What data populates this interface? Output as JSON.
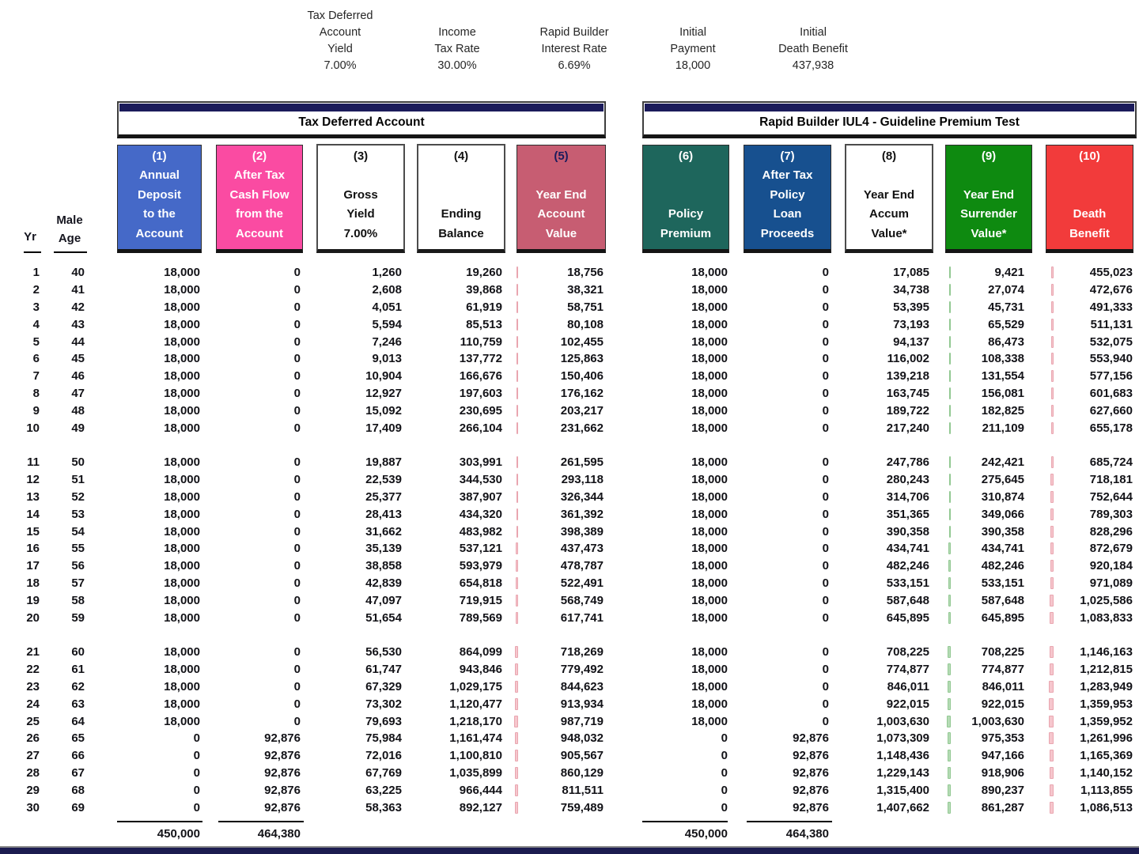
{
  "params": [
    {
      "id": "tax-deferred-account-yield",
      "lines": [
        "Tax Deferred",
        "Account",
        "Yield",
        "7.00%"
      ]
    },
    {
      "id": "income-tax-rate",
      "lines": [
        "Income",
        "Tax Rate",
        "30.00%"
      ]
    },
    {
      "id": "rapid-builder-interest-rate",
      "lines": [
        "Rapid Builder",
        "Interest Rate",
        "6.69%"
      ]
    },
    {
      "id": "initial-payment",
      "lines": [
        "Initial",
        "Payment",
        "18,000"
      ]
    },
    {
      "id": "initial-death-benefit",
      "lines": [
        "Initial",
        "Death Benefit",
        "437,938"
      ]
    }
  ],
  "sections": {
    "left_title": "Tax Deferred Account",
    "right_title": "Rapid Builder IUL4 - Guideline Premium Test"
  },
  "row_header": {
    "yr": "Yr",
    "age_line1": "Male",
    "age_line2": "Age"
  },
  "columns": [
    {
      "id": "annual-deposit",
      "num": "(1)",
      "lines": [
        "Annual",
        "Deposit",
        "to the",
        "Account"
      ],
      "bg": "#4569c8",
      "fg": "#ffffff",
      "num_color": "#ffffff",
      "white": false
    },
    {
      "id": "after-tax-cash-flow",
      "num": "(2)",
      "lines": [
        "After Tax",
        "Cash Flow",
        "from the",
        "Account"
      ],
      "bg": "#fa4ba2",
      "fg": "#ffffff",
      "num_color": "#ffffff",
      "white": false
    },
    {
      "id": "gross-yield",
      "num": "(3)",
      "lines": [
        "Gross",
        "Yield",
        "7.00%"
      ],
      "bg": "#ffffff",
      "fg": "#111111",
      "num_color": "#111111",
      "white": true
    },
    {
      "id": "ending-balance",
      "num": "(4)",
      "lines": [
        "Ending",
        "Balance"
      ],
      "bg": "#ffffff",
      "fg": "#111111",
      "num_color": "#111111",
      "white": true
    },
    {
      "id": "year-end-account-value",
      "num": "(5)",
      "lines": [
        "Year End",
        "Account",
        "Value"
      ],
      "bg": "#c75d72",
      "fg": "#ffffff",
      "num_color": "#1b1b5c",
      "white": false
    },
    {
      "id": "policy-premium",
      "num": "(6)",
      "lines": [
        "Policy",
        "Premium"
      ],
      "bg": "#1e665c",
      "fg": "#ffffff",
      "num_color": "#ffffff",
      "white": false
    },
    {
      "id": "after-tax-policy-loan-proceeds",
      "num": "(7)",
      "lines": [
        "After Tax",
        "Policy",
        "Loan",
        "Proceeds"
      ],
      "bg": "#17508f",
      "fg": "#ffffff",
      "num_color": "#ffffff",
      "white": false
    },
    {
      "id": "year-end-accum-value",
      "num": "(8)",
      "lines": [
        "Year End",
        "Accum",
        "Value*"
      ],
      "bg": "#ffffff",
      "fg": "#111111",
      "num_color": "#111111",
      "white": true
    },
    {
      "id": "year-end-surrender-value",
      "num": "(9)",
      "lines": [
        "Year End",
        "Surrender",
        "Value*"
      ],
      "bg": "#0e8a10",
      "fg": "#ffffff",
      "num_color": "#ffffff",
      "white": false
    },
    {
      "id": "death-benefit",
      "num": "(10)",
      "lines": [
        "Death",
        "Benefit"
      ],
      "bg": "#f23b3b",
      "fg": "#ffffff",
      "num_color": "#ffffff",
      "white": false
    }
  ],
  "ticks": {
    "account_value": {
      "color": "#f6c6cd",
      "border": "#e9a6b0"
    },
    "surrender_value": {
      "color": "#b7dcb7",
      "border": "#92c892"
    },
    "death_benefit": {
      "color": "#f6c6cd",
      "border": "#e9a6b0"
    }
  },
  "rows": [
    [
      "1",
      "40",
      "18,000",
      "0",
      "1,260",
      "19,260",
      "18,756",
      "18,000",
      "0",
      "17,085",
      "9,421",
      "455,023"
    ],
    [
      "2",
      "41",
      "18,000",
      "0",
      "2,608",
      "39,868",
      "38,321",
      "18,000",
      "0",
      "34,738",
      "27,074",
      "472,676"
    ],
    [
      "3",
      "42",
      "18,000",
      "0",
      "4,051",
      "61,919",
      "58,751",
      "18,000",
      "0",
      "53,395",
      "45,731",
      "491,333"
    ],
    [
      "4",
      "43",
      "18,000",
      "0",
      "5,594",
      "85,513",
      "80,108",
      "18,000",
      "0",
      "73,193",
      "65,529",
      "511,131"
    ],
    [
      "5",
      "44",
      "18,000",
      "0",
      "7,246",
      "110,759",
      "102,455",
      "18,000",
      "0",
      "94,137",
      "86,473",
      "532,075"
    ],
    [
      "6",
      "45",
      "18,000",
      "0",
      "9,013",
      "137,772",
      "125,863",
      "18,000",
      "0",
      "116,002",
      "108,338",
      "553,940"
    ],
    [
      "7",
      "46",
      "18,000",
      "0",
      "10,904",
      "166,676",
      "150,406",
      "18,000",
      "0",
      "139,218",
      "131,554",
      "577,156"
    ],
    [
      "8",
      "47",
      "18,000",
      "0",
      "12,927",
      "197,603",
      "176,162",
      "18,000",
      "0",
      "163,745",
      "156,081",
      "601,683"
    ],
    [
      "9",
      "48",
      "18,000",
      "0",
      "15,092",
      "230,695",
      "203,217",
      "18,000",
      "0",
      "189,722",
      "182,825",
      "627,660"
    ],
    [
      "10",
      "49",
      "18,000",
      "0",
      "17,409",
      "266,104",
      "231,662",
      "18,000",
      "0",
      "217,240",
      "211,109",
      "655,178"
    ],
    [
      "11",
      "50",
      "18,000",
      "0",
      "19,887",
      "303,991",
      "261,595",
      "18,000",
      "0",
      "247,786",
      "242,421",
      "685,724"
    ],
    [
      "12",
      "51",
      "18,000",
      "0",
      "22,539",
      "344,530",
      "293,118",
      "18,000",
      "0",
      "280,243",
      "275,645",
      "718,181"
    ],
    [
      "13",
      "52",
      "18,000",
      "0",
      "25,377",
      "387,907",
      "326,344",
      "18,000",
      "0",
      "314,706",
      "310,874",
      "752,644"
    ],
    [
      "14",
      "53",
      "18,000",
      "0",
      "28,413",
      "434,320",
      "361,392",
      "18,000",
      "0",
      "351,365",
      "349,066",
      "789,303"
    ],
    [
      "15",
      "54",
      "18,000",
      "0",
      "31,662",
      "483,982",
      "398,389",
      "18,000",
      "0",
      "390,358",
      "390,358",
      "828,296"
    ],
    [
      "16",
      "55",
      "18,000",
      "0",
      "35,139",
      "537,121",
      "437,473",
      "18,000",
      "0",
      "434,741",
      "434,741",
      "872,679"
    ],
    [
      "17",
      "56",
      "18,000",
      "0",
      "38,858",
      "593,979",
      "478,787",
      "18,000",
      "0",
      "482,246",
      "482,246",
      "920,184"
    ],
    [
      "18",
      "57",
      "18,000",
      "0",
      "42,839",
      "654,818",
      "522,491",
      "18,000",
      "0",
      "533,151",
      "533,151",
      "971,089"
    ],
    [
      "19",
      "58",
      "18,000",
      "0",
      "47,097",
      "719,915",
      "568,749",
      "18,000",
      "0",
      "587,648",
      "587,648",
      "1,025,586"
    ],
    [
      "20",
      "59",
      "18,000",
      "0",
      "51,654",
      "789,569",
      "617,741",
      "18,000",
      "0",
      "645,895",
      "645,895",
      "1,083,833"
    ],
    [
      "21",
      "60",
      "18,000",
      "0",
      "56,530",
      "864,099",
      "718,269",
      "18,000",
      "0",
      "708,225",
      "708,225",
      "1,146,163"
    ],
    [
      "22",
      "61",
      "18,000",
      "0",
      "61,747",
      "943,846",
      "779,492",
      "18,000",
      "0",
      "774,877",
      "774,877",
      "1,212,815"
    ],
    [
      "23",
      "62",
      "18,000",
      "0",
      "67,329",
      "1,029,175",
      "844,623",
      "18,000",
      "0",
      "846,011",
      "846,011",
      "1,283,949"
    ],
    [
      "24",
      "63",
      "18,000",
      "0",
      "73,302",
      "1,120,477",
      "913,934",
      "18,000",
      "0",
      "922,015",
      "922,015",
      "1,359,953"
    ],
    [
      "25",
      "64",
      "18,000",
      "0",
      "79,693",
      "1,218,170",
      "987,719",
      "18,000",
      "0",
      "1,003,630",
      "1,003,630",
      "1,359,952"
    ],
    [
      "26",
      "65",
      "0",
      "92,876",
      "75,984",
      "1,161,474",
      "948,032",
      "0",
      "92,876",
      "1,073,309",
      "975,353",
      "1,261,996"
    ],
    [
      "27",
      "66",
      "0",
      "92,876",
      "72,016",
      "1,100,810",
      "905,567",
      "0",
      "92,876",
      "1,148,436",
      "947,166",
      "1,165,369"
    ],
    [
      "28",
      "67",
      "0",
      "92,876",
      "67,769",
      "1,035,899",
      "860,129",
      "0",
      "92,876",
      "1,229,143",
      "918,906",
      "1,140,152"
    ],
    [
      "29",
      "68",
      "0",
      "92,876",
      "63,225",
      "966,444",
      "811,511",
      "0",
      "92,876",
      "1,315,400",
      "890,237",
      "1,113,855"
    ],
    [
      "30",
      "69",
      "0",
      "92,876",
      "58,363",
      "892,127",
      "759,489",
      "0",
      "92,876",
      "1,407,662",
      "861,287",
      "1,086,513"
    ]
  ],
  "totals": {
    "deposit": "450,000",
    "cash_flow": "464,380",
    "premium": "450,000",
    "loan_proceeds": "464,380"
  }
}
